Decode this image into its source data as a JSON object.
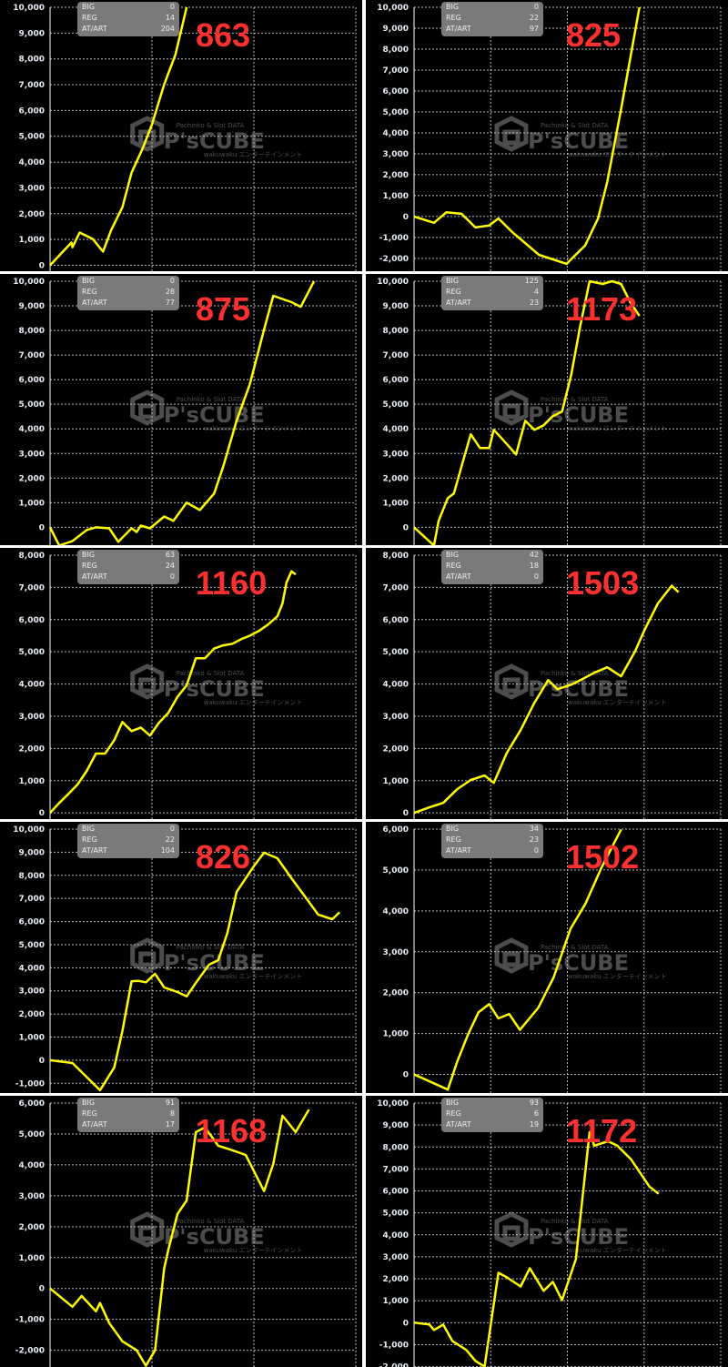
{
  "watermark": {
    "top": "Pachinko & Slot DATA",
    "logo": "P'sCUBE",
    "bottom": "wakuwaku エンターテインメント"
  },
  "colors": {
    "line": "#ffff00",
    "label": "#ff3030",
    "background": "#000000",
    "grid": "#bbbbbb",
    "infobox": "#7a7a7a"
  },
  "info_labels": {
    "big": "BIG",
    "reg": "REG",
    "at": "AT/ART"
  },
  "chart_data": [
    {
      "type": "line",
      "label": "863",
      "info": {
        "big": "0",
        "reg": "14",
        "at": "204"
      },
      "xlim": [
        0,
        3
      ],
      "ylim": [
        -300,
        10000
      ],
      "yticks": [
        "0",
        "1,000",
        "2,000",
        "3,000",
        "4,000",
        "5,000",
        "6,000",
        "7,000",
        "8,000",
        "9,000",
        "10,000"
      ],
      "ytick_values": [
        0,
        1000,
        2000,
        3000,
        4000,
        5000,
        6000,
        7000,
        8000,
        9000,
        10000
      ],
      "x": [
        0,
        0.21,
        0.22,
        0.29,
        0.42,
        0.52,
        0.6,
        0.71,
        0.8,
        0.91,
        1.0,
        1.12,
        1.23,
        1.34
      ],
      "y": [
        0,
        880,
        700,
        1270,
        1020,
        530,
        1370,
        2250,
        3590,
        4540,
        5460,
        7010,
        8170,
        10000
      ]
    },
    {
      "type": "line",
      "label": "825",
      "info": {
        "big": "0",
        "reg": "22",
        "at": "97"
      },
      "xlim": [
        0,
        4
      ],
      "ylim": [
        -2700,
        10000
      ],
      "yticks": [
        "-2,000",
        "-1,000",
        "0",
        "1,000",
        "2,000",
        "3,000",
        "4,000",
        "5,000",
        "6,000",
        "7,000",
        "8,000",
        "9,000",
        "10,000"
      ],
      "ytick_values": [
        -2000,
        -1000,
        0,
        1000,
        2000,
        3000,
        4000,
        5000,
        6000,
        7000,
        8000,
        9000,
        10000
      ],
      "x": [
        0,
        0.26,
        0.42,
        0.62,
        0.8,
        0.98,
        1.1,
        1.28,
        1.63,
        1.99,
        2.05,
        2.23,
        2.4,
        2.52,
        2.7,
        2.94
      ],
      "y": [
        0,
        -300,
        200,
        130,
        -520,
        -430,
        -90,
        -740,
        -1830,
        -2260,
        -2040,
        -1390,
        -90,
        1650,
        5130,
        10000
      ]
    },
    {
      "type": "line",
      "label": "875",
      "info": {
        "big": "0",
        "reg": "28",
        "at": "77"
      },
      "xlim": [
        0,
        3
      ],
      "ylim": [
        -800,
        10000
      ],
      "yticks": [
        "0",
        "1,000",
        "2,000",
        "3,000",
        "4,000",
        "5,000",
        "6,000",
        "7,000",
        "8,000",
        "9,000",
        "10,000"
      ],
      "ytick_values": [
        0,
        1000,
        2000,
        3000,
        4000,
        5000,
        6000,
        7000,
        8000,
        9000,
        10000
      ],
      "x": [
        0,
        0.09,
        0.22,
        0.36,
        0.45,
        0.58,
        0.67,
        0.8,
        0.85,
        0.89,
        0.98,
        1.12,
        1.21,
        1.34,
        1.47,
        1.61,
        1.7,
        1.83,
        1.96,
        2.1,
        2.19,
        2.37,
        2.46,
        2.59
      ],
      "y": [
        0,
        -740,
        -560,
        -110,
        0,
        -40,
        -590,
        -40,
        -190,
        70,
        -40,
        440,
        260,
        1000,
        700,
        1370,
        2480,
        4330,
        5810,
        8040,
        9410,
        9150,
        8960,
        10000
      ]
    },
    {
      "type": "line",
      "label": "1173",
      "info": {
        "big": "125",
        "reg": "4",
        "at": "23"
      },
      "xlim": [
        0,
        4
      ],
      "ylim": [
        -800,
        10000
      ],
      "yticks": [
        "0",
        "1,000",
        "2,000",
        "3,000",
        "4,000",
        "5,000",
        "6,000",
        "7,000",
        "8,000",
        "9,000",
        "10,000"
      ],
      "ytick_values": [
        0,
        1000,
        2000,
        3000,
        4000,
        5000,
        6000,
        7000,
        8000,
        9000,
        10000
      ],
      "x": [
        0,
        0.26,
        0.32,
        0.44,
        0.52,
        0.62,
        0.74,
        0.86,
        0.98,
        1.04,
        1.15,
        1.33,
        1.45,
        1.57,
        1.69,
        1.81,
        1.93,
        2.05,
        2.17,
        2.29,
        2.46,
        2.58,
        2.7,
        2.82,
        2.94
      ],
      "y": [
        0,
        -740,
        260,
        1190,
        1370,
        2480,
        3780,
        3220,
        3220,
        3960,
        3590,
        2960,
        4330,
        3960,
        4150,
        4520,
        4700,
        6190,
        8220,
        10000,
        9890,
        10000,
        9890,
        9150,
        8590
      ]
    },
    {
      "type": "line",
      "label": "1160",
      "info": {
        "big": "63",
        "reg": "24",
        "at": "0"
      },
      "xlim": [
        0,
        3
      ],
      "ylim": [
        -250,
        8000
      ],
      "yticks": [
        "0",
        "1,000",
        "2,000",
        "3,000",
        "4,000",
        "5,000",
        "6,000",
        "7,000",
        "8,000"
      ],
      "ytick_values": [
        0,
        1000,
        2000,
        3000,
        4000,
        5000,
        6000,
        7000,
        8000
      ],
      "x": [
        0,
        0.09,
        0.18,
        0.27,
        0.36,
        0.45,
        0.54,
        0.63,
        0.71,
        0.8,
        0.89,
        0.98,
        1.07,
        1.16,
        1.25,
        1.34,
        1.43,
        1.52,
        1.61,
        1.7,
        1.79,
        1.88,
        1.96,
        2.05,
        2.14,
        2.23,
        2.28,
        2.32,
        2.37,
        2.41
      ],
      "y": [
        0,
        310,
        590,
        880,
        1300,
        1840,
        1840,
        2260,
        2820,
        2540,
        2650,
        2400,
        2800,
        3100,
        3600,
        3960,
        4800,
        4800,
        5100,
        5200,
        5250,
        5400,
        5500,
        5650,
        5850,
        6100,
        6500,
        7150,
        7500,
        7400
      ]
    },
    {
      "type": "line",
      "label": "1503",
      "info": {
        "big": "42",
        "reg": "18",
        "at": "0"
      },
      "xlim": [
        0,
        4
      ],
      "ylim": [
        -250,
        8000
      ],
      "yticks": [
        "0",
        "1,000",
        "2,000",
        "3,000",
        "4,000",
        "5,000",
        "6,000",
        "7,000",
        "8,000"
      ],
      "ytick_values": [
        0,
        1000,
        2000,
        3000,
        4000,
        5000,
        6000,
        7000,
        8000
      ],
      "x": [
        0,
        0.2,
        0.38,
        0.56,
        0.74,
        0.92,
        1.04,
        1.21,
        1.39,
        1.57,
        1.75,
        1.87,
        2.05,
        2.17,
        2.35,
        2.52,
        2.7,
        2.88,
        3.0,
        3.18,
        3.36,
        3.45
      ],
      "y": [
        0,
        170,
        310,
        730,
        1020,
        1160,
        930,
        1860,
        2570,
        3420,
        4120,
        3840,
        3980,
        4120,
        4350,
        4520,
        4240,
        5000,
        5650,
        6500,
        7050,
        6850
      ]
    },
    {
      "type": "line",
      "label": "826",
      "info": {
        "big": "0",
        "reg": "22",
        "at": "104"
      },
      "xlim": [
        0,
        3
      ],
      "ylim": [
        -1500,
        10000
      ],
      "yticks": [
        "-1,000",
        "0",
        "1,000",
        "2,000",
        "3,000",
        "4,000",
        "5,000",
        "6,000",
        "7,000",
        "8,000",
        "9,000",
        "10,000"
      ],
      "ytick_values": [
        -1000,
        0,
        1000,
        2000,
        3000,
        4000,
        5000,
        6000,
        7000,
        8000,
        9000,
        10000
      ],
      "x": [
        0,
        0.22,
        0.49,
        0.63,
        0.71,
        0.8,
        0.87,
        0.94,
        1.03,
        1.12,
        1.25,
        1.34,
        1.43,
        1.56,
        1.65,
        1.74,
        1.83,
        1.92,
        2.01,
        2.1,
        2.23,
        2.37,
        2.5,
        2.63,
        2.77,
        2.84
      ],
      "y": [
        0,
        -120,
        -1300,
        -310,
        1260,
        3420,
        3430,
        3370,
        3740,
        3150,
        2950,
        2760,
        3350,
        4130,
        4330,
        5510,
        7280,
        7870,
        8460,
        8980,
        8740,
        7870,
        7090,
        6300,
        6100,
        6400
      ]
    },
    {
      "type": "line",
      "label": "1502",
      "info": {
        "big": "34",
        "reg": "23",
        "at": "0"
      },
      "xlim": [
        0,
        4
      ],
      "ylim": [
        -500,
        6000
      ],
      "yticks": [
        "0",
        "1,000",
        "2,000",
        "3,000",
        "4,000",
        "5,000",
        "6,000"
      ],
      "ytick_values": [
        0,
        1000,
        2000,
        3000,
        4000,
        5000,
        6000
      ],
      "x": [
        0,
        0.44,
        0.56,
        0.7,
        0.84,
        0.98,
        1.1,
        1.24,
        1.38,
        1.62,
        1.82,
        2.04,
        2.24,
        2.44,
        2.7
      ],
      "y": [
        0,
        -370,
        300,
        960,
        1520,
        1720,
        1370,
        1480,
        1090,
        1630,
        2370,
        3560,
        4190,
        5040,
        5990
      ]
    },
    {
      "type": "line",
      "label": "1168",
      "info": {
        "big": "91",
        "reg": "8",
        "at": "17"
      },
      "xlim": [
        0,
        3
      ],
      "ylim": [
        -2600,
        6000
      ],
      "yticks": [
        "-2,000",
        "-1,000",
        "0",
        "1,000",
        "2,000",
        "3,000",
        "4,000",
        "5,000",
        "6,000"
      ],
      "ytick_values": [
        -2000,
        -1000,
        0,
        1000,
        2000,
        3000,
        4000,
        5000,
        6000
      ],
      "x": [
        0,
        0.22,
        0.31,
        0.45,
        0.49,
        0.58,
        0.71,
        0.85,
        0.94,
        1.03,
        1.12,
        1.16,
        1.25,
        1.34,
        1.43,
        1.52,
        1.65,
        1.79,
        1.92,
        2.1,
        2.19,
        2.28,
        2.41,
        2.54
      ],
      "y": [
        0,
        -590,
        -240,
        -740,
        -470,
        -1120,
        -1710,
        -2000,
        -2500,
        -2000,
        650,
        1240,
        2410,
        2850,
        5060,
        5210,
        4620,
        4470,
        4320,
        3150,
        4030,
        5590,
        5060,
        5790
      ]
    },
    {
      "type": "line",
      "label": "1172",
      "info": {
        "big": "93",
        "reg": "6",
        "at": "19"
      },
      "xlim": [
        0,
        4
      ],
      "ylim": [
        -2100,
        10000
      ],
      "yticks": [
        "-2,000",
        "-1,000",
        "0",
        "1,000",
        "2,000",
        "3,000",
        "4,000",
        "5,000",
        "6,000",
        "7,000",
        "8,000",
        "9,000",
        "10,000"
      ],
      "ytick_values": [
        -2000,
        -1000,
        0,
        1000,
        2000,
        3000,
        4000,
        5000,
        6000,
        7000,
        8000,
        9000,
        10000
      ],
      "x": [
        0,
        0.2,
        0.26,
        0.32,
        0.38,
        0.5,
        0.68,
        0.8,
        0.92,
        1.1,
        1.21,
        1.39,
        1.51,
        1.69,
        1.81,
        1.93,
        2.11,
        2.29,
        2.35,
        2.53,
        2.65,
        2.83,
        2.95,
        3.07,
        3.19
      ],
      "y": [
        0,
        -80,
        -330,
        -210,
        -80,
        -830,
        -1240,
        -1740,
        -2000,
        2270,
        2070,
        1650,
        2480,
        1450,
        1860,
        1030,
        2890,
        8680,
        8060,
        8260,
        8060,
        7440,
        6820,
        6200,
        5870
      ]
    }
  ]
}
